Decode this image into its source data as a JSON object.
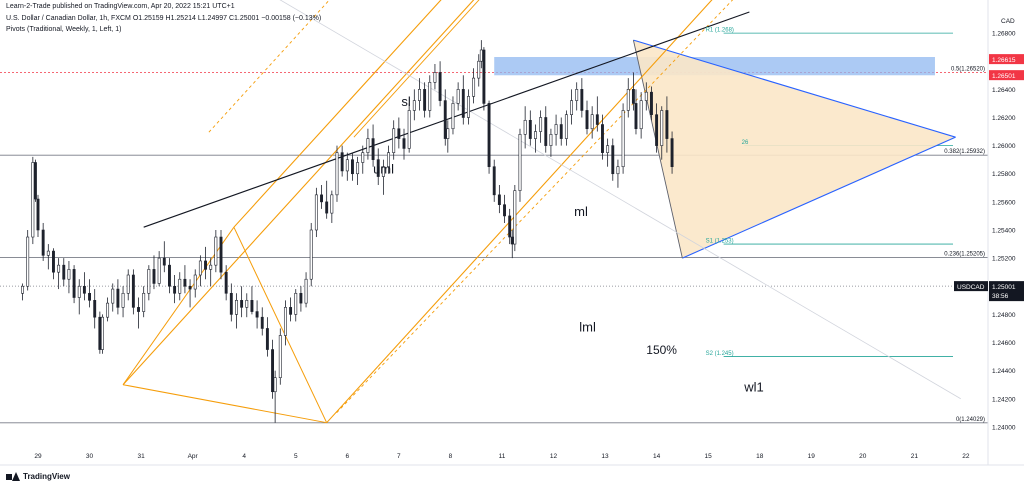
{
  "header": {
    "credit": "Learn-2-Trade published on TradingView.com, Apr 20, 2022 15:21 UTC+1",
    "symbol_line": "U.S. Dollar / Canadian Dollar, 1h, FXCM  O1.25159  H1.25214  L1.24997  C1.25001  −0.00158 (−0.13%)",
    "pivots_line": "Pivots (Traditional, Weekly, 1, Left, 1)"
  },
  "footer": {
    "brand": "TradingView"
  },
  "colors": {
    "up": "#26a69a",
    "down": "#ef5350",
    "candle": "#1e222d",
    "pitchfork": "#f59d0a",
    "triangle_line": "#2962ff",
    "triangle_fill": "#fbe7c8",
    "pivot": "#26a69a",
    "zone": "#90b8f0",
    "red_level": "#f23645",
    "trend": "#131722"
  },
  "chart_data": {
    "type": "candlestick",
    "symbol": "USDCAD",
    "interval": "1h",
    "currency": "CAD",
    "ylim": [
      1.2385,
      1.2695
    ],
    "y_ticks": [
      1.24,
      1.242,
      1.244,
      1.246,
      1.248,
      1.25,
      1.252,
      1.254,
      1.256,
      1.258,
      1.26,
      1.262,
      1.264,
      1.266,
      1.268
    ],
    "y_tick_labels": [
      "1.24000",
      "1.24200",
      "1.24400",
      "1.24600",
      "1.24800",
      "1.25000",
      "1.25200",
      "1.25400",
      "1.25600",
      "1.25800",
      "1.26000",
      "1.26200",
      "1.26400",
      "1.26600",
      "1.26800"
    ],
    "x_ticks": [
      "29",
      "30",
      "31",
      "Apr",
      "4",
      "5",
      "6",
      "7",
      "8",
      "11",
      "12",
      "13",
      "14",
      "15",
      "18",
      "19",
      "20",
      "21",
      "22"
    ],
    "x_tick_positions": [
      0,
      1,
      2,
      3,
      4,
      5,
      6,
      7,
      8,
      9,
      10,
      11,
      12,
      13,
      14,
      15,
      16,
      17,
      18
    ],
    "last_price": {
      "symbol": "USDCAD",
      "price": "1.25001",
      "countdown": "38:56"
    },
    "price_markers": [
      {
        "label": "1.26615",
        "value": 1.26615
      },
      {
        "label": "1.26501",
        "value": 1.26501
      }
    ],
    "fib_levels": [
      {
        "label": "0.5(1.26520)",
        "value": 1.2652
      },
      {
        "label": "0.382(1.25932)",
        "value": 1.25932
      },
      {
        "label": "0.236(1.25205)",
        "value": 1.25205
      },
      {
        "label": "0(1.24029)",
        "value": 1.24029
      }
    ],
    "pivot_levels": [
      {
        "label": "R1 (1.268)",
        "value": 1.268
      },
      {
        "label": "S1 (1.253)",
        "value": 1.253
      },
      {
        "label": "S2 (1.245)",
        "value": 1.245
      }
    ],
    "pivot_extra_label": "26",
    "annotations": [
      "sl",
      "uml",
      "ml",
      "lml",
      "150%",
      "wl1"
    ],
    "candles": [
      [
        -0.3,
        1.2495,
        1.2502,
        1.249,
        1.25
      ],
      [
        -0.2,
        1.25,
        1.254,
        1.2497,
        1.2535
      ],
      [
        -0.1,
        1.2535,
        1.2592,
        1.253,
        1.2588
      ],
      [
        -0.05,
        1.2588,
        1.259,
        1.256,
        1.2562
      ],
      [
        0.0,
        1.2562,
        1.2565,
        1.2535,
        1.254
      ],
      [
        0.1,
        1.254,
        1.2545,
        1.2518,
        1.2522
      ],
      [
        0.2,
        1.2522,
        1.253,
        1.2512,
        1.2525
      ],
      [
        0.3,
        1.2525,
        1.2527,
        1.2505,
        1.251
      ],
      [
        0.4,
        1.251,
        1.252,
        1.2498,
        1.2515
      ],
      [
        0.5,
        1.2515,
        1.252,
        1.25,
        1.2505
      ],
      [
        0.6,
        1.2505,
        1.2518,
        1.2495,
        1.2512
      ],
      [
        0.7,
        1.2512,
        1.2515,
        1.2488,
        1.2492
      ],
      [
        0.8,
        1.2492,
        1.2505,
        1.248,
        1.25
      ],
      [
        0.9,
        1.25,
        1.251,
        1.249,
        1.2495
      ],
      [
        1.0,
        1.2495,
        1.2505,
        1.2485,
        1.249
      ],
      [
        1.1,
        1.249,
        1.2498,
        1.247,
        1.2478
      ],
      [
        1.2,
        1.2478,
        1.2482,
        1.2452,
        1.2455
      ],
      [
        1.25,
        1.2455,
        1.248,
        1.2452,
        1.2478
      ],
      [
        1.35,
        1.2478,
        1.2492,
        1.2475,
        1.2488
      ],
      [
        1.45,
        1.2488,
        1.2502,
        1.2482,
        1.2498
      ],
      [
        1.55,
        1.2498,
        1.2505,
        1.248,
        1.2485
      ],
      [
        1.65,
        1.2485,
        1.25,
        1.2478,
        1.2495
      ],
      [
        1.75,
        1.2495,
        1.2512,
        1.249,
        1.2508
      ],
      [
        1.85,
        1.2508,
        1.2512,
        1.248,
        1.2485
      ],
      [
        1.95,
        1.2485,
        1.2492,
        1.247,
        1.2482
      ],
      [
        2.05,
        1.2482,
        1.25,
        1.2478,
        1.2495
      ],
      [
        2.15,
        1.2495,
        1.2515,
        1.249,
        1.2512
      ],
      [
        2.25,
        1.2512,
        1.2522,
        1.2498,
        1.2502
      ],
      [
        2.35,
        1.2502,
        1.2525,
        1.25,
        1.252
      ],
      [
        2.45,
        1.252,
        1.2532,
        1.251,
        1.2515
      ],
      [
        2.55,
        1.2515,
        1.252,
        1.2495,
        1.25
      ],
      [
        2.65,
        1.25,
        1.2508,
        1.2488,
        1.2495
      ],
      [
        2.75,
        1.2495,
        1.251,
        1.249,
        1.2505
      ],
      [
        2.85,
        1.2505,
        1.2515,
        1.2495,
        1.25
      ],
      [
        2.95,
        1.25,
        1.2505,
        1.2485,
        1.2498
      ],
      [
        3.05,
        1.2498,
        1.2512,
        1.2492,
        1.2508
      ],
      [
        3.15,
        1.2508,
        1.2522,
        1.25,
        1.2518
      ],
      [
        3.25,
        1.2518,
        1.2528,
        1.2505,
        1.2512
      ],
      [
        3.35,
        1.2512,
        1.252,
        1.25,
        1.2515
      ],
      [
        3.45,
        1.2515,
        1.254,
        1.251,
        1.2535
      ],
      [
        3.55,
        1.2535,
        1.254,
        1.2505,
        1.251
      ],
      [
        3.65,
        1.251,
        1.2515,
        1.249,
        1.2495
      ],
      [
        3.75,
        1.2495,
        1.2502,
        1.2475,
        1.248
      ],
      [
        3.85,
        1.248,
        1.2495,
        1.247,
        1.249
      ],
      [
        3.95,
        1.249,
        1.25,
        1.2478,
        1.2485
      ],
      [
        4.05,
        1.2485,
        1.2495,
        1.2478,
        1.249
      ],
      [
        4.15,
        1.249,
        1.25,
        1.248,
        1.2482
      ],
      [
        4.25,
        1.2482,
        1.249,
        1.247,
        1.2478
      ],
      [
        4.35,
        1.2478,
        1.2485,
        1.2465,
        1.247
      ],
      [
        4.45,
        1.247,
        1.2478,
        1.245,
        1.2455
      ],
      [
        4.55,
        1.2455,
        1.2462,
        1.242,
        1.2425
      ],
      [
        4.6,
        1.2425,
        1.244,
        1.2403,
        1.2435
      ],
      [
        4.7,
        1.2435,
        1.247,
        1.243,
        1.2465
      ],
      [
        4.8,
        1.2465,
        1.249,
        1.2458,
        1.2485
      ],
      [
        4.9,
        1.2485,
        1.2492,
        1.2475,
        1.248
      ],
      [
        5.0,
        1.248,
        1.2498,
        1.2475,
        1.2495
      ],
      [
        5.1,
        1.2495,
        1.25,
        1.2482,
        1.2488
      ],
      [
        5.2,
        1.2488,
        1.251,
        1.2485,
        1.2505
      ],
      [
        5.3,
        1.2505,
        1.2545,
        1.25,
        1.254
      ],
      [
        5.4,
        1.254,
        1.257,
        1.2535,
        1.2565
      ],
      [
        5.5,
        1.2565,
        1.2572,
        1.2555,
        1.256
      ],
      [
        5.6,
        1.256,
        1.2575,
        1.2548,
        1.2552
      ],
      [
        5.7,
        1.2552,
        1.2568,
        1.2545,
        1.2565
      ],
      [
        5.8,
        1.2565,
        1.26,
        1.256,
        1.2595
      ],
      [
        5.9,
        1.2595,
        1.26,
        1.2578,
        1.2582
      ],
      [
        6.0,
        1.2582,
        1.2595,
        1.2575,
        1.259
      ],
      [
        6.1,
        1.259,
        1.2595,
        1.2575,
        1.258
      ],
      [
        6.2,
        1.258,
        1.2592,
        1.2572,
        1.2588
      ],
      [
        6.3,
        1.2588,
        1.26,
        1.258,
        1.2595
      ],
      [
        6.4,
        1.2595,
        1.2612,
        1.259,
        1.2605
      ],
      [
        6.5,
        1.2605,
        1.2615,
        1.2585,
        1.259
      ],
      [
        6.6,
        1.259,
        1.2598,
        1.2572,
        1.2578
      ],
      [
        6.7,
        1.2578,
        1.259,
        1.2565,
        1.2585
      ],
      [
        6.8,
        1.2585,
        1.26,
        1.258,
        1.2595
      ],
      [
        6.9,
        1.2595,
        1.2618,
        1.259,
        1.2612
      ],
      [
        7.0,
        1.2612,
        1.262,
        1.2598,
        1.2605
      ],
      [
        7.1,
        1.2605,
        1.2612,
        1.259,
        1.2598
      ],
      [
        7.2,
        1.2598,
        1.263,
        1.2595,
        1.2625
      ],
      [
        7.3,
        1.2625,
        1.264,
        1.2618,
        1.2632
      ],
      [
        7.4,
        1.2632,
        1.2648,
        1.2625,
        1.264
      ],
      [
        7.5,
        1.264,
        1.2645,
        1.262,
        1.2625
      ],
      [
        7.6,
        1.2625,
        1.265,
        1.262,
        1.2645
      ],
      [
        7.7,
        1.2645,
        1.2658,
        1.264,
        1.2652
      ],
      [
        7.8,
        1.2652,
        1.266,
        1.2628,
        1.2632
      ],
      [
        7.9,
        1.2632,
        1.264,
        1.26,
        1.2605
      ],
      [
        7.95,
        1.2605,
        1.2618,
        1.2595,
        1.2612
      ],
      [
        8.05,
        1.2612,
        1.2635,
        1.2608,
        1.263
      ],
      [
        8.15,
        1.263,
        1.2645,
        1.2625,
        1.264
      ],
      [
        8.25,
        1.264,
        1.265,
        1.2615,
        1.262
      ],
      [
        8.35,
        1.262,
        1.264,
        1.2615,
        1.2635
      ],
      [
        8.45,
        1.2635,
        1.2655,
        1.263,
        1.2648
      ],
      [
        8.55,
        1.2648,
        1.2665,
        1.2642,
        1.266
      ],
      [
        8.6,
        1.266,
        1.2675,
        1.2655,
        1.2668
      ],
      [
        8.65,
        1.2668,
        1.267,
        1.2625,
        1.263
      ],
      [
        8.75,
        1.263,
        1.2632,
        1.258,
        1.2585
      ],
      [
        8.85,
        1.2585,
        1.259,
        1.256,
        1.2565
      ],
      [
        8.95,
        1.2565,
        1.2572,
        1.2552,
        1.2558
      ],
      [
        9.05,
        1.2558,
        1.2565,
        1.2545,
        1.255
      ],
      [
        9.15,
        1.255,
        1.2555,
        1.253,
        1.2535
      ],
      [
        9.2,
        1.2535,
        1.254,
        1.252,
        1.253
      ],
      [
        9.25,
        1.253,
        1.2572,
        1.2525,
        1.2568
      ],
      [
        9.35,
        1.2568,
        1.2612,
        1.256,
        1.2608
      ],
      [
        9.45,
        1.2608,
        1.2628,
        1.2598,
        1.2618
      ],
      [
        9.55,
        1.2618,
        1.2625,
        1.26,
        1.2605
      ],
      [
        9.65,
        1.2605,
        1.2615,
        1.2595,
        1.261
      ],
      [
        9.75,
        1.261,
        1.2625,
        1.2602,
        1.262
      ],
      [
        9.85,
        1.262,
        1.2628,
        1.2595,
        1.26
      ],
      [
        9.95,
        1.26,
        1.2612,
        1.2592,
        1.2608
      ],
      [
        10.05,
        1.2608,
        1.2622,
        1.26,
        1.2615
      ],
      [
        10.15,
        1.2615,
        1.262,
        1.26,
        1.2605
      ],
      [
        10.25,
        1.2605,
        1.2625,
        1.26,
        1.2622
      ],
      [
        10.35,
        1.2622,
        1.264,
        1.2615,
        1.2632
      ],
      [
        10.45,
        1.2632,
        1.2645,
        1.2625,
        1.264
      ],
      [
        10.55,
        1.264,
        1.2648,
        1.262,
        1.2625
      ],
      [
        10.65,
        1.2625,
        1.2632,
        1.2608,
        1.2612
      ],
      [
        10.75,
        1.2612,
        1.2628,
        1.2605,
        1.2622
      ],
      [
        10.85,
        1.2622,
        1.2635,
        1.261,
        1.2615
      ],
      [
        10.95,
        1.2615,
        1.2622,
        1.259,
        1.2595
      ],
      [
        11.05,
        1.2595,
        1.2605,
        1.2585,
        1.26
      ],
      [
        11.15,
        1.26,
        1.2605,
        1.2575,
        1.258
      ],
      [
        11.25,
        1.258,
        1.259,
        1.257,
        1.2585
      ],
      [
        11.35,
        1.2585,
        1.263,
        1.258,
        1.2625
      ],
      [
        11.45,
        1.2625,
        1.2648,
        1.262,
        1.264
      ],
      [
        11.55,
        1.264,
        1.2652,
        1.2625,
        1.263
      ],
      [
        11.6,
        1.263,
        1.264,
        1.2608,
        1.2612
      ],
      [
        11.7,
        1.2612,
        1.2638,
        1.2605,
        1.2632
      ],
      [
        11.8,
        1.2632,
        1.2645,
        1.2625,
        1.2638
      ],
      [
        11.9,
        1.2638,
        1.2642,
        1.2618,
        1.2622
      ],
      [
        12.0,
        1.2622,
        1.263,
        1.2595,
        1.26
      ],
      [
        12.1,
        1.26,
        1.2628,
        1.259,
        1.2625
      ],
      [
        12.2,
        1.2625,
        1.2635,
        1.2595,
        1.2605
      ],
      [
        12.3,
        1.2605,
        1.261,
        1.258,
        1.2585
      ]
    ]
  }
}
